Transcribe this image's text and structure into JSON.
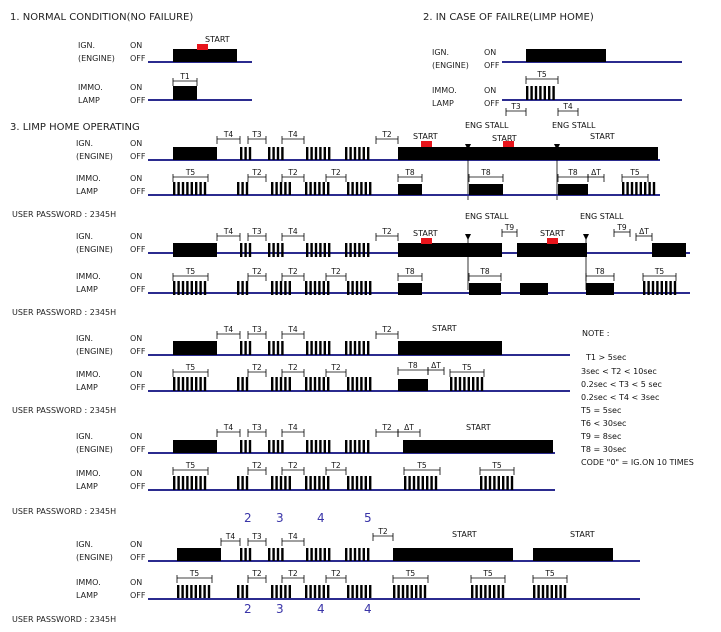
{
  "sections": {
    "normal": "1. NORMAL CONDITION(NO FAILURE)",
    "limp_home": "2. IN CASE OF FAILRE(LIMP HOME)",
    "limp_operating": "3. LIMP HOME OPERATING"
  },
  "labels": {
    "ign": "IGN.",
    "engine": "(ENGINE)",
    "immo": "IMMO.",
    "lamp": "LAMP",
    "on": "ON",
    "off": "OFF",
    "password": "USER PASSWORD : 2345H"
  },
  "events": {
    "start": "START",
    "eng_stall": "ENG STALL"
  },
  "timers": {
    "t1": "T1",
    "t2": "T2",
    "t3": "T3",
    "t4": "T4",
    "t5": "T5",
    "t8": "T8",
    "t9": "T9",
    "delta_t": "ΔT"
  },
  "note": {
    "title": "NOTE :",
    "lines": [
      "T1 > 5sec",
      "3sec < T2 < 10sec",
      "0.2sec < T3 < 5 sec",
      "0.2sec < T4 < 3sec",
      "T5 = 5sec",
      "T6 < 30sec",
      "T9 = 8sec",
      "T8 = 30sec",
      "CODE \"0\" = IG.ON 10 TIMES"
    ]
  },
  "digits_top": [
    "2",
    "3",
    "4",
    "5"
  ],
  "digits_bottom": [
    "2",
    "3",
    "4",
    "4"
  ],
  "colors": {
    "signal": "#000000",
    "baseline": "#2b2b8f",
    "start_marker": "#e8141b",
    "digit_text": "#3a35a8"
  }
}
